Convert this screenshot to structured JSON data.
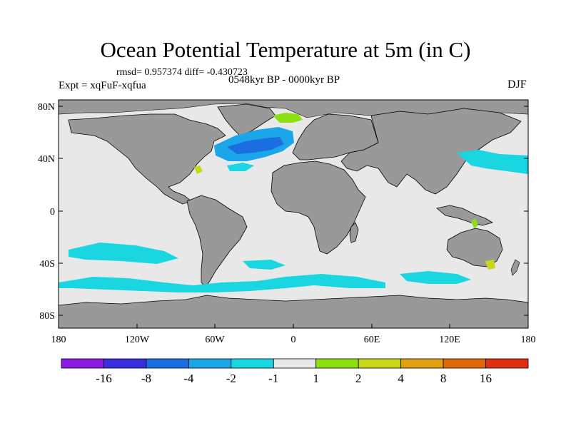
{
  "title": "Ocean Potential Temperature at 5m (in C)",
  "stats": "rmsd= 0.957374 diff= -0.430723",
  "experiment": "Expt = xqFuF-xqfua",
  "period": "0548kyr BP - 0000kyr BP",
  "season": "DJF",
  "lat_ticks": [
    "80N",
    "40N",
    "0",
    "40S",
    "80S"
  ],
  "lon_ticks": [
    "180",
    "120W",
    "60W",
    "0",
    "60E",
    "120E",
    "180"
  ],
  "colorbar": {
    "colors": [
      "#8c1be0",
      "#3a2ddc",
      "#1a6ee0",
      "#1aa6e8",
      "#1ad6e0",
      "#e8e8e8",
      "#8ce010",
      "#c8d818",
      "#e0a010",
      "#e06a0a",
      "#e03010"
    ],
    "labels": [
      "-16",
      "-8",
      "-4",
      "-2",
      "-1",
      "1",
      "2",
      "4",
      "8",
      "16"
    ]
  },
  "colors": {
    "land": "#999999",
    "ocean_neutral": "#e8e8e8",
    "coast": "#000000"
  }
}
